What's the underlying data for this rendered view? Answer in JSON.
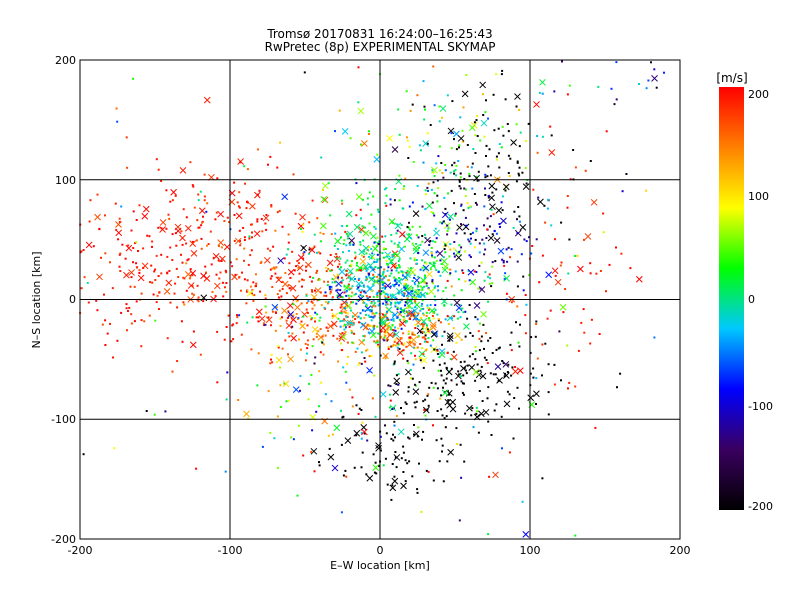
{
  "chart_data": {
    "type": "scatter",
    "title": "Tromsø 20170831 16:24:00–16:25:43",
    "subtitle": "RwPretec (8p) EXPERIMENTAL SKYMAP",
    "xlabel": "E–W location [km]",
    "ylabel": "N–S location [km]",
    "xlim": [
      -200,
      200
    ],
    "ylim": [
      -200,
      200
    ],
    "xticks": [
      "-200",
      "-100",
      "0",
      "100",
      "200"
    ],
    "yticks": [
      "200",
      "100",
      "0",
      "-100",
      "-200"
    ],
    "grid": true,
    "colorbar": {
      "label": "[m/s]",
      "range": [
        -200,
        200
      ],
      "ticks": [
        "200",
        "100",
        "0",
        "-100",
        "-200"
      ],
      "colormap": [
        "#000000",
        "#3a0060",
        "#0000ff",
        "#00c8ff",
        "#00ff00",
        "#ffff00",
        "#ff8000",
        "#ff0000"
      ]
    },
    "markers": [
      "dot",
      "cross"
    ],
    "clusters": [
      {
        "x": -150,
        "y": 30,
        "sx": 40,
        "sy": 35,
        "n": 230,
        "v": 190,
        "sv": 15
      },
      {
        "x": -100,
        "y": 60,
        "sx": 35,
        "sy": 30,
        "n": 120,
        "v": 185,
        "sv": 15
      },
      {
        "x": -60,
        "y": 10,
        "sx": 30,
        "sy": 30,
        "n": 140,
        "v": 175,
        "sv": 25
      },
      {
        "x": -25,
        "y": -5,
        "sx": 25,
        "sy": 25,
        "n": 220,
        "v": 160,
        "sv": 35
      },
      {
        "x": 0,
        "y": 30,
        "sx": 25,
        "sy": 30,
        "n": 260,
        "v": 10,
        "sv": 20
      },
      {
        "x": 5,
        "y": 0,
        "sx": 18,
        "sy": 15,
        "n": 260,
        "v": -40,
        "sv": 30
      },
      {
        "x": 25,
        "y": 10,
        "sx": 25,
        "sy": 30,
        "n": 200,
        "v": 25,
        "sv": 40
      },
      {
        "x": 40,
        "y": 120,
        "sx": 30,
        "sy": 30,
        "n": 120,
        "v": 40,
        "sv": 60
      },
      {
        "x": 70,
        "y": 110,
        "sx": 25,
        "sy": 35,
        "n": 110,
        "v": -200,
        "sv": 5
      },
      {
        "x": 60,
        "y": 55,
        "sx": 25,
        "sy": 25,
        "n": 130,
        "v": -110,
        "sv": 50
      },
      {
        "x": 55,
        "y": -65,
        "sx": 30,
        "sy": 25,
        "n": 200,
        "v": -200,
        "sv": 5
      },
      {
        "x": 20,
        "y": -30,
        "sx": 15,
        "sy": 10,
        "n": 110,
        "v": 150,
        "sv": 40
      },
      {
        "x": 10,
        "y": -130,
        "sx": 20,
        "sy": 18,
        "n": 80,
        "v": -200,
        "sv": 5
      },
      {
        "x": -20,
        "y": -60,
        "sx": 40,
        "sy": 35,
        "n": 120,
        "v": 20,
        "sv": 80
      },
      {
        "x": 110,
        "y": 20,
        "sx": 30,
        "sy": 60,
        "n": 70,
        "v": 190,
        "sv": 15
      },
      {
        "x": 0,
        "y": 0,
        "sx": 110,
        "sy": 110,
        "n": 200,
        "v": 30,
        "sv": 130
      },
      {
        "x": 170,
        "y": 190,
        "sx": 15,
        "sy": 15,
        "n": 20,
        "v": -100,
        "sv": 70
      }
    ]
  }
}
